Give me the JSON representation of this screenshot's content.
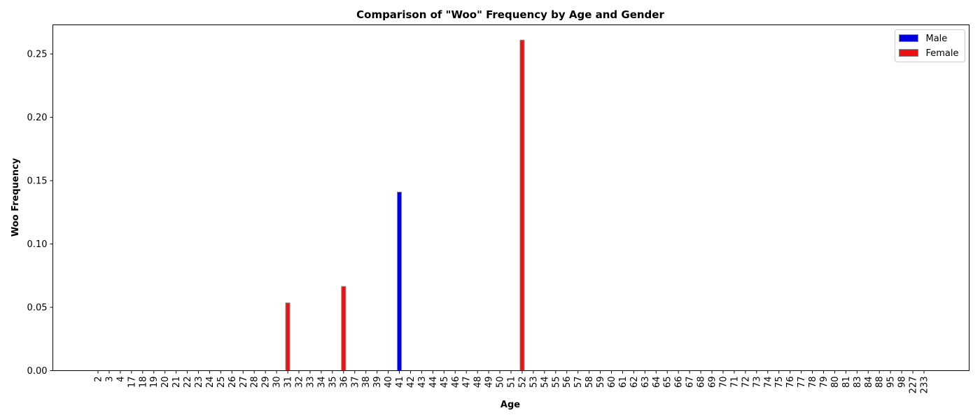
{
  "chart_data": {
    "type": "bar",
    "title": "Comparison of \"Woo\" Frequency by Age and Gender",
    "xlabel": "Age",
    "ylabel": "Woo Frequency",
    "ylim": [
      0,
      0.273
    ],
    "yticks": [
      "0.00",
      "0.05",
      "0.10",
      "0.15",
      "0.20",
      "0.25"
    ],
    "categories": [
      "2",
      "3",
      "4",
      "17",
      "18",
      "19",
      "20",
      "21",
      "22",
      "23",
      "24",
      "25",
      "26",
      "27",
      "28",
      "29",
      "30",
      "31",
      "32",
      "33",
      "34",
      "35",
      "36",
      "37",
      "38",
      "39",
      "40",
      "41",
      "42",
      "43",
      "44",
      "45",
      "46",
      "47",
      "48",
      "49",
      "50",
      "51",
      "52",
      "53",
      "54",
      "55",
      "56",
      "57",
      "58",
      "59",
      "60",
      "61",
      "62",
      "63",
      "64",
      "65",
      "66",
      "67",
      "68",
      "69",
      "70",
      "71",
      "72",
      "73",
      "74",
      "75",
      "76",
      "77",
      "78",
      "79",
      "80",
      "81",
      "83",
      "84",
      "88",
      "95",
      "98",
      "227",
      "233"
    ],
    "series": [
      {
        "name": "Male",
        "color": "#0000dd",
        "values": [
          0,
          0,
          0,
          0,
          0,
          0,
          0,
          0,
          0,
          0,
          0,
          0,
          0,
          0,
          0,
          0,
          0,
          0,
          0,
          0,
          0,
          0,
          0,
          0,
          0,
          0,
          0,
          0.141,
          0,
          0,
          0,
          0,
          0,
          0,
          0,
          0,
          0,
          0,
          0,
          0,
          0,
          0,
          0,
          0,
          0,
          0,
          0,
          0,
          0,
          0,
          0,
          0,
          0,
          0,
          0,
          0,
          0,
          0,
          0,
          0,
          0,
          0,
          0,
          0,
          0,
          0,
          0,
          0,
          0,
          0,
          0,
          0,
          0,
          0,
          0
        ]
      },
      {
        "name": "Female",
        "color": "#ee1111",
        "values": [
          0,
          0,
          0,
          0,
          0,
          0,
          0,
          0,
          0,
          0,
          0,
          0,
          0,
          0,
          0,
          0,
          0,
          0.0535,
          0,
          0,
          0,
          0,
          0.0665,
          0,
          0,
          0,
          0,
          0,
          0,
          0,
          0,
          0,
          0,
          0,
          0,
          0,
          0,
          0,
          0.261,
          0,
          0,
          0,
          0,
          0,
          0,
          0,
          0,
          0,
          0,
          0,
          0,
          0,
          0,
          0,
          0,
          0,
          0,
          0,
          0,
          0,
          0,
          0,
          0,
          0,
          0,
          0,
          0,
          0,
          0,
          0,
          0,
          0,
          0,
          0,
          0
        ]
      }
    ],
    "legend_position": "top-right",
    "grid": false
  }
}
